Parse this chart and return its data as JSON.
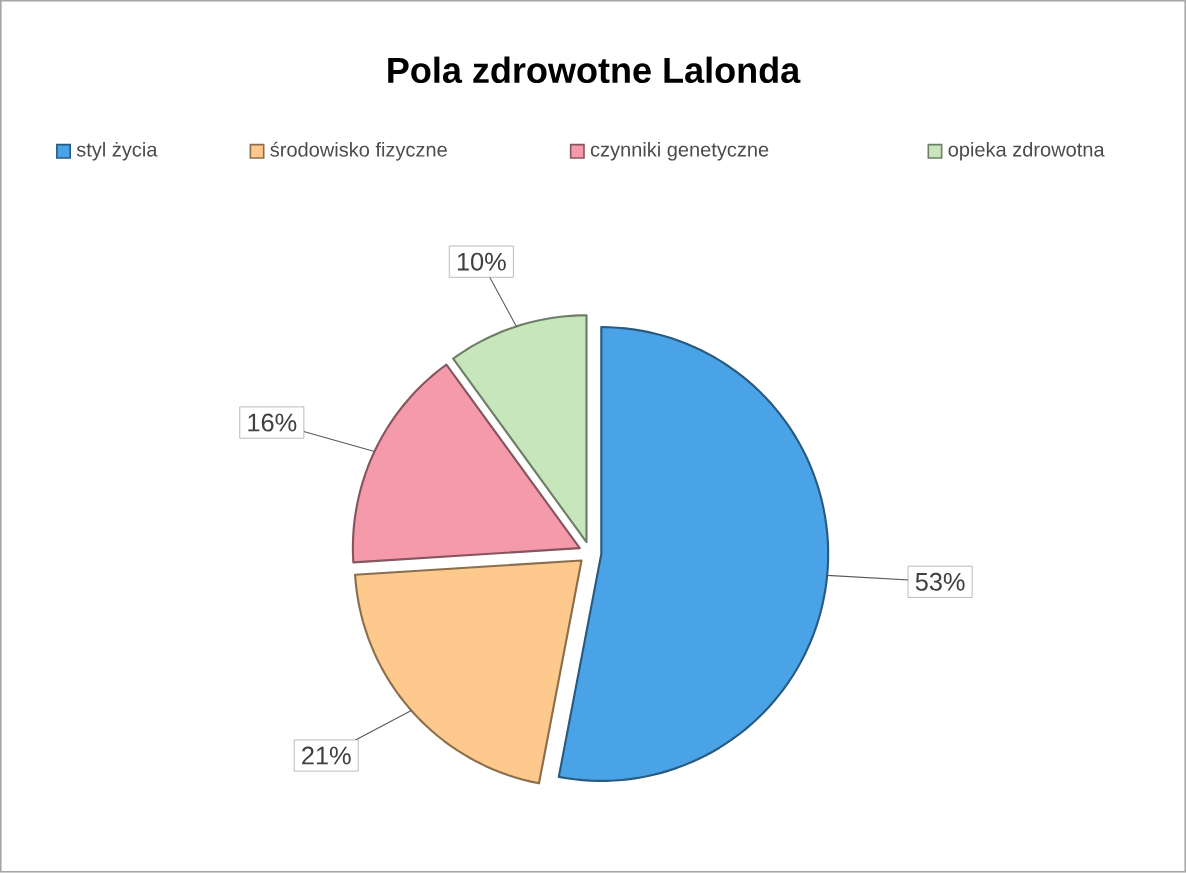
{
  "chart_data": {
    "type": "pie",
    "title": "Pola zdrowotne Lalonda",
    "categories": [
      "styl życia",
      "środowisko fizyczne",
      "czynniki genetyczne",
      "opieka zdrowotna"
    ],
    "values": [
      53,
      21,
      16,
      10
    ],
    "value_labels": [
      "53%",
      "21%",
      "16%",
      "10%"
    ],
    "colors": [
      "#4aa3e6",
      "#fdc98c",
      "#f59aab",
      "#c8e6bc"
    ],
    "legend": "top"
  }
}
